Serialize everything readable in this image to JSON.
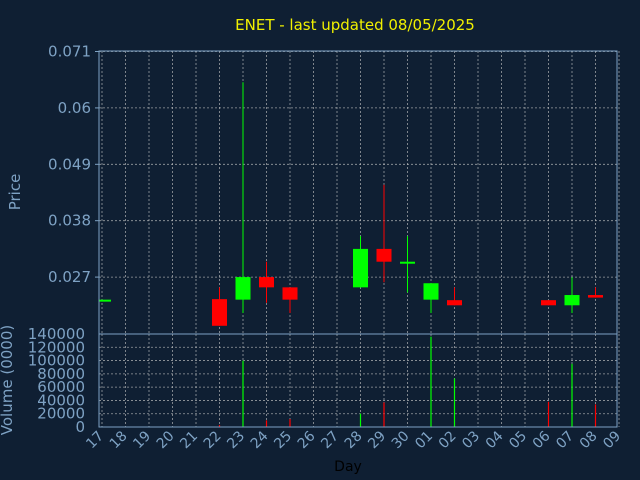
{
  "chart_data": [
    {
      "type": "candlestick",
      "title": "ENET - last updated 08/05/2025",
      "ylabel": "Price",
      "ylim": [
        0.0159,
        0.0711
      ],
      "yticks": [
        0.027,
        0.038,
        0.049,
        0.06,
        0.071
      ],
      "ytick_labels": [
        "0.027",
        "0.038",
        "0.049",
        "0.06",
        "0.071"
      ],
      "grid": true,
      "up_color": "#00ff00",
      "down_color": "#ff0000",
      "categories": [
        "17",
        "18",
        "19",
        "20",
        "21",
        "22",
        "23",
        "24",
        "25",
        "26",
        "27",
        "28",
        "29",
        "30",
        "01",
        "02",
        "03",
        "04",
        "05",
        "06",
        "07",
        "08",
        "09"
      ],
      "candles": [
        {
          "day": "17",
          "open": 0.0226,
          "close": 0.0226,
          "high": 0.0226,
          "low": 0.0226
        },
        {
          "day": "22",
          "open": 0.0227,
          "close": 0.0175,
          "high": 0.025,
          "low": 0.0175
        },
        {
          "day": "23",
          "open": 0.0226,
          "close": 0.027,
          "high": 0.065,
          "low": 0.02
        },
        {
          "day": "24",
          "open": 0.027,
          "close": 0.025,
          "high": 0.03,
          "low": 0.022
        },
        {
          "day": "25",
          "open": 0.025,
          "close": 0.0226,
          "high": 0.025,
          "low": 0.02
        },
        {
          "day": "28",
          "open": 0.025,
          "close": 0.0325,
          "high": 0.035,
          "low": 0.025
        },
        {
          "day": "29",
          "open": 0.0325,
          "close": 0.03,
          "high": 0.045,
          "low": 0.026
        },
        {
          "day": "30",
          "open": 0.03,
          "close": 0.03,
          "high": 0.035,
          "low": 0.024
        },
        {
          "day": "01",
          "open": 0.0226,
          "close": 0.0258,
          "high": 0.0258,
          "low": 0.02
        },
        {
          "day": "02",
          "open": 0.0225,
          "close": 0.0215,
          "high": 0.025,
          "low": 0.0215
        },
        {
          "day": "06",
          "open": 0.0225,
          "close": 0.0215,
          "high": 0.0225,
          "low": 0.0215
        },
        {
          "day": "07",
          "open": 0.0215,
          "close": 0.0235,
          "high": 0.027,
          "low": 0.02
        },
        {
          "day": "08",
          "open": 0.0235,
          "close": 0.023,
          "high": 0.025,
          "low": 0.023
        }
      ]
    },
    {
      "type": "bar",
      "ylabel": "Volume (0000)",
      "xlabel": "Day",
      "ylim": [
        0,
        140000
      ],
      "yticks": [
        0,
        20000,
        40000,
        60000,
        80000,
        100000,
        120000,
        140000
      ],
      "ytick_labels": [
        "0",
        "20000",
        "40000",
        "60000",
        "80000",
        "100000",
        "120000",
        "140000"
      ],
      "grid": true,
      "categories": [
        "17",
        "18",
        "19",
        "20",
        "21",
        "22",
        "23",
        "24",
        "25",
        "26",
        "27",
        "28",
        "29",
        "30",
        "01",
        "02",
        "03",
        "04",
        "05",
        "06",
        "07",
        "08",
        "09"
      ],
      "bars": [
        {
          "day": "22",
          "value": 3000,
          "direction": "down"
        },
        {
          "day": "23",
          "value": 100000,
          "direction": "up"
        },
        {
          "day": "24",
          "value": 10000,
          "direction": "down"
        },
        {
          "day": "25",
          "value": 12000,
          "direction": "down"
        },
        {
          "day": "28",
          "value": 20000,
          "direction": "up"
        },
        {
          "day": "29",
          "value": 37000,
          "direction": "down"
        },
        {
          "day": "01",
          "value": 136000,
          "direction": "up"
        },
        {
          "day": "02",
          "value": 73000,
          "direction": "up"
        },
        {
          "day": "06",
          "value": 38000,
          "direction": "down"
        },
        {
          "day": "07",
          "value": 95000,
          "direction": "up"
        },
        {
          "day": "08",
          "value": 34000,
          "direction": "down"
        }
      ]
    }
  ]
}
